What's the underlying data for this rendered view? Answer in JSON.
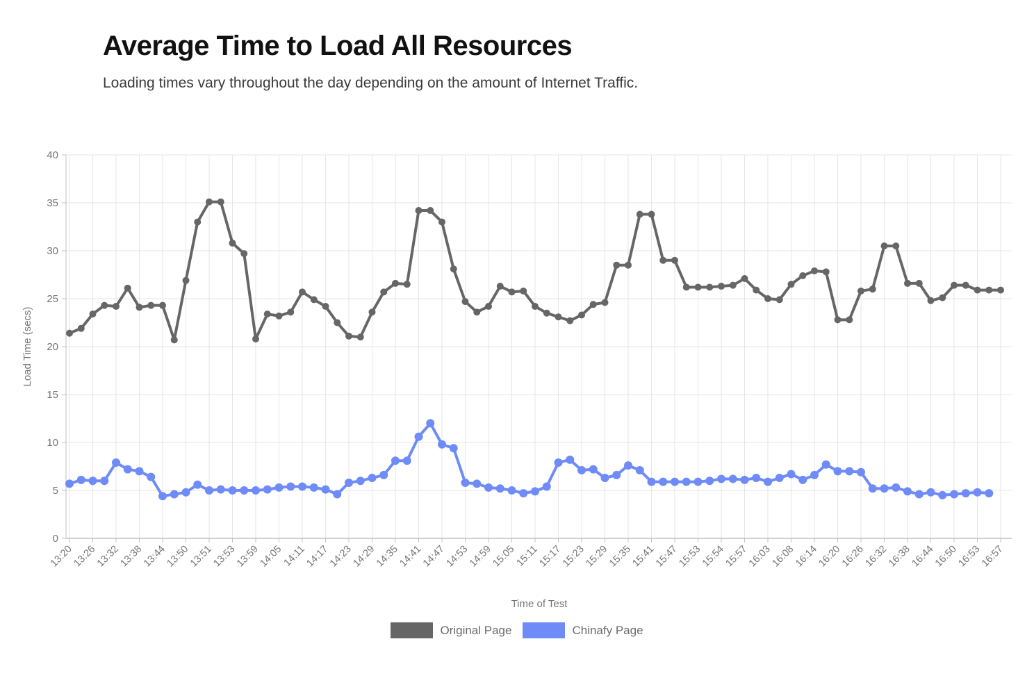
{
  "header": {
    "title": "Average Time to Load All Resources",
    "subtitle": "Loading times vary throughout the day depending on the amount of Internet Traffic."
  },
  "chart_data": {
    "type": "line",
    "title": "Average Time to Load All Resources",
    "xlabel": "Time of Test",
    "ylabel": "Load Time (secs)",
    "ylim": [
      0,
      40
    ],
    "yticks": [
      0,
      5,
      10,
      15,
      20,
      25,
      30,
      35,
      40
    ],
    "grid": true,
    "legend_position": "bottom",
    "x_tick_labels": [
      "13:20",
      "13:26",
      "13:32",
      "13:38",
      "13:44",
      "13:50",
      "13:51",
      "13:53",
      "13:59",
      "14:05",
      "14:11",
      "14:17",
      "14:23",
      "14:29",
      "14:35",
      "14:41",
      "14:47",
      "14:53",
      "14:59",
      "15:05",
      "15:11",
      "15:17",
      "15:23",
      "15:29",
      "15:35",
      "15:41",
      "15:47",
      "15:53",
      "15:54",
      "15:57",
      "16:03",
      "16:08",
      "16:14",
      "16:20",
      "16:26",
      "16:32",
      "16:38",
      "16:44",
      "16:50",
      "16:53",
      "16:57"
    ],
    "points_per_label_interval": 2,
    "series": [
      {
        "name": "Original Page",
        "color": "#666666",
        "values": [
          21.4,
          21.9,
          23.4,
          24.3,
          24.2,
          26.1,
          24.1,
          24.3,
          24.3,
          20.7,
          26.9,
          33.0,
          35.1,
          35.1,
          30.8,
          29.7,
          20.8,
          23.4,
          23.2,
          23.6,
          25.7,
          24.9,
          24.2,
          22.5,
          21.1,
          21.0,
          23.6,
          25.7,
          26.6,
          26.5,
          34.2,
          34.2,
          33.0,
          28.1,
          24.7,
          23.6,
          24.2,
          26.3,
          25.7,
          25.8,
          24.2,
          23.5,
          23.1,
          22.7,
          23.3,
          24.4,
          24.6,
          28.5,
          28.5,
          33.8,
          33.8,
          29.0,
          29.0,
          26.2,
          26.2,
          26.2,
          26.3,
          26.4,
          27.1,
          25.9,
          25.0,
          24.9,
          26.5,
          27.4,
          27.9,
          27.8,
          22.8,
          22.8,
          25.8,
          26.0,
          30.5,
          30.5,
          26.6,
          26.6,
          24.8,
          25.1,
          26.4,
          26.4,
          25.9,
          25.9,
          25.9
        ]
      },
      {
        "name": "Chinafy Page",
        "color": "#6e8bf7",
        "values": [
          5.7,
          6.1,
          6.0,
          6.0,
          7.9,
          7.2,
          7.0,
          6.4,
          4.4,
          4.6,
          4.8,
          5.6,
          5.0,
          5.1,
          5.0,
          5.0,
          5.0,
          5.1,
          5.3,
          5.4,
          5.4,
          5.3,
          5.1,
          4.6,
          5.8,
          6.0,
          6.3,
          6.6,
          8.1,
          8.1,
          10.6,
          12.0,
          9.8,
          9.4,
          5.8,
          5.7,
          5.3,
          5.2,
          5.0,
          4.7,
          4.9,
          5.4,
          7.9,
          8.2,
          7.1,
          7.2,
          6.3,
          6.6,
          7.6,
          7.1,
          5.9,
          5.9,
          5.9,
          5.9,
          5.9,
          6.0,
          6.2,
          6.2,
          6.1,
          6.3,
          5.9,
          6.3,
          6.7,
          6.1,
          6.6,
          7.7,
          7.0,
          7.0,
          6.9,
          5.2,
          5.2,
          5.3,
          4.9,
          4.6,
          4.8,
          4.5,
          4.6,
          4.7,
          4.8,
          4.7,
          null
        ]
      }
    ],
    "style": {
      "grid_color": "#e6e6e6",
      "axis_color": "#c2c2c2",
      "tick_label_color": "#757575",
      "line_width": 4,
      "point_radius_original": 5,
      "point_radius_chinafy": 6
    }
  }
}
